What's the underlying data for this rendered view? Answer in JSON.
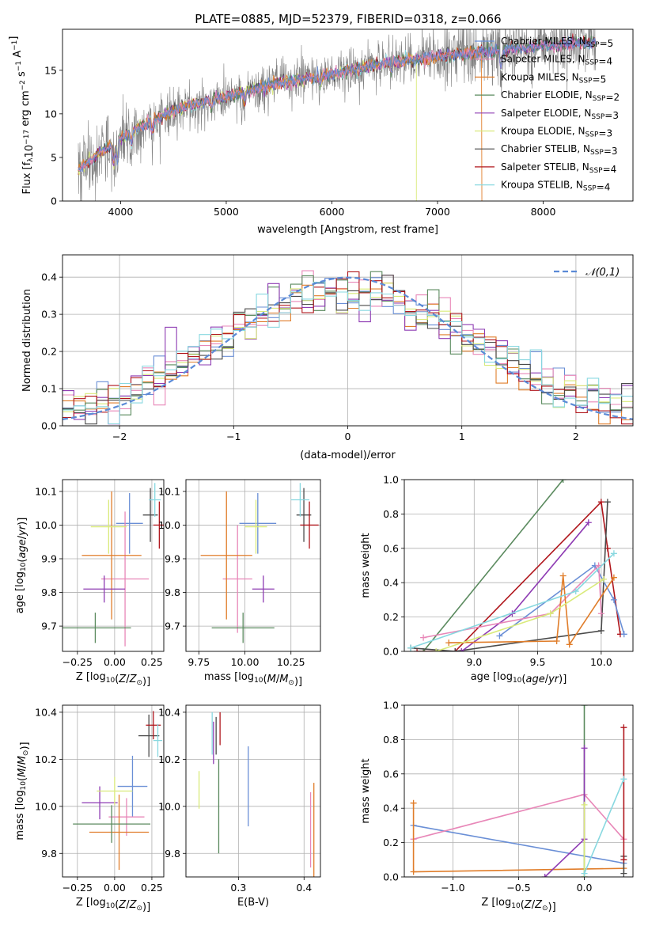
{
  "figure": {
    "title": "PLATE=0885, MJD=52379, FIBERID=0318, z=0.066"
  },
  "series": [
    {
      "key": "chab_miles",
      "name": "Chabrier MILES, N_SSP=5",
      "lib": "MILES",
      "imf": "Chabrier",
      "nssp": 5,
      "color": "#6a8fd6"
    },
    {
      "key": "salp_miles",
      "name": "Salpeter MILES, N_SSP=4",
      "lib": "MILES",
      "imf": "Salpeter",
      "nssp": 4,
      "color": "#e887b8"
    },
    {
      "key": "krou_miles",
      "name": "Kroupa MILES, N_SSP=5",
      "lib": "MILES",
      "imf": "Kroupa",
      "nssp": 5,
      "color": "#e07d2a"
    },
    {
      "key": "chab_elodie",
      "name": "Chabrier ELODIE, N_SSP=2",
      "lib": "ELODIE",
      "imf": "Chabrier",
      "nssp": 2,
      "color": "#5a8a5e"
    },
    {
      "key": "salp_elodie",
      "name": "Salpeter ELODIE, N_SSP=3",
      "lib": "ELODIE",
      "imf": "Salpeter",
      "nssp": 3,
      "color": "#8e3bb3"
    },
    {
      "key": "krou_elodie",
      "name": "Kroupa ELODIE, N_SSP=3",
      "lib": "ELODIE",
      "imf": "Kroupa",
      "nssp": 3,
      "color": "#d9ea7a"
    },
    {
      "key": "chab_stelib",
      "name": "Chabrier STELIB, N_SSP=3",
      "lib": "STELIB",
      "imf": "Chabrier",
      "nssp": 3,
      "color": "#4a4a4a"
    },
    {
      "key": "salp_stelib",
      "name": "Salpeter STELIB, N_SSP=4",
      "lib": "STELIB",
      "imf": "Salpeter",
      "nssp": 4,
      "color": "#b0161c"
    },
    {
      "key": "krou_stelib",
      "name": "Kroupa STELIB, N_SSP=4",
      "lib": "STELIB",
      "imf": "Kroupa",
      "nssp": 4,
      "color": "#88d8e0"
    }
  ],
  "chart_data": [
    {
      "id": "spectrum",
      "type": "line",
      "xlabel": "wavelength [Angstrom, rest frame]",
      "ylabel": "Flux [f_λ10^-17 erg cm^-2 s^-1 A^-1]",
      "xlim": [
        3450,
        8850
      ],
      "ylim": [
        0,
        19.7
      ],
      "xticks": [
        4000,
        5000,
        6000,
        7000,
        8000
      ],
      "yticks": [
        0,
        5,
        10,
        15
      ],
      "data_color": "#808080",
      "grid": false,
      "legend": "right",
      "continuum": {
        "x": [
          3600,
          3800,
          4000,
          4300,
          4600,
          5000,
          5500,
          6000,
          6500,
          7000,
          7500,
          8000,
          8500
        ],
        "y": [
          3.5,
          5.5,
          7.2,
          9.2,
          10.8,
          12.0,
          13.5,
          14.5,
          15.8,
          16.6,
          17.2,
          17.8,
          18.2
        ]
      },
      "model_cutoff": {
        "krou_elodie": 6800,
        "krou_miles": 7420
      }
    },
    {
      "id": "residual_hist",
      "type": "line",
      "xlabel": "(data-model)/error",
      "ylabel": "Normed distribution",
      "xlim": [
        -2.5,
        2.5
      ],
      "ylim": [
        0,
        0.46
      ],
      "xticks": [
        -2,
        -1,
        0,
        1,
        2
      ],
      "yticks": [
        0.0,
        0.1,
        0.2,
        0.3,
        0.4
      ],
      "grid": true,
      "legend": "top-right",
      "reference": {
        "name": "𝒩(0,1)",
        "color": "#5b8ad6",
        "style": "dashed"
      }
    },
    {
      "id": "age_vs_Z",
      "type": "scatter",
      "xlabel": "Z [log10(Z/Z☉)]",
      "ylabel": "age [log10(age/yr)]",
      "xlim": [
        -0.35,
        0.33
      ],
      "ylim": [
        9.625,
        10.135
      ],
      "xticks": [
        -0.25,
        0.0,
        0.25
      ],
      "yticks": [
        9.7,
        9.8,
        9.9,
        10.0,
        10.1
      ],
      "grid": true,
      "points": [
        {
          "s": "chab_miles",
          "x": 0.1,
          "y": 10.005,
          "xerr": 0.09,
          "yerr": 0.09
        },
        {
          "s": "salp_miles",
          "x": 0.07,
          "y": 9.84,
          "xerr": 0.16,
          "yerr": 0.2
        },
        {
          "s": "krou_miles",
          "x": -0.02,
          "y": 9.91,
          "xerr": 0.2,
          "yerr": 0.19
        },
        {
          "s": "chab_elodie",
          "x": -0.13,
          "y": 9.695,
          "xerr": 0.24,
          "yerr": 0.045
        },
        {
          "s": "salp_elodie",
          "x": -0.07,
          "y": 9.81,
          "xerr": 0.14,
          "yerr": 0.04
        },
        {
          "s": "krou_elodie",
          "x": -0.04,
          "y": 9.995,
          "xerr": 0.12,
          "yerr": 0.08
        },
        {
          "s": "chab_stelib",
          "x": 0.24,
          "y": 10.03,
          "xerr": 0.05,
          "yerr": 0.08
        },
        {
          "s": "salp_stelib",
          "x": 0.3,
          "y": 10.0,
          "xerr": 0.04,
          "yerr": 0.07
        },
        {
          "s": "krou_stelib",
          "x": 0.27,
          "y": 10.075,
          "xerr": 0.04,
          "yerr": 0.05
        }
      ]
    },
    {
      "id": "age_vs_mass",
      "type": "scatter",
      "xlabel": "mass [log10(M/M☉)]",
      "ylabel": "",
      "xlim": [
        9.68,
        10.41
      ],
      "ylim": [
        9.625,
        10.135
      ],
      "xticks": [
        9.75,
        10.0,
        10.25
      ],
      "yticks": [
        9.7,
        9.8,
        9.9,
        10.0,
        10.1
      ],
      "grid": true,
      "points": [
        {
          "s": "chab_miles",
          "x": 10.07,
          "y": 10.005,
          "xerr": 0.1,
          "yerr": 0.09
        },
        {
          "s": "salp_miles",
          "x": 9.96,
          "y": 9.84,
          "xerr": 0.08,
          "yerr": 0.16
        },
        {
          "s": "krou_miles",
          "x": 9.9,
          "y": 9.91,
          "xerr": 0.14,
          "yerr": 0.19
        },
        {
          "s": "chab_elodie",
          "x": 9.99,
          "y": 9.695,
          "xerr": 0.17,
          "yerr": 0.045
        },
        {
          "s": "salp_elodie",
          "x": 10.1,
          "y": 9.81,
          "xerr": 0.06,
          "yerr": 0.04
        },
        {
          "s": "krou_elodie",
          "x": 10.06,
          "y": 9.995,
          "xerr": 0.06,
          "yerr": 0.08
        },
        {
          "s": "chab_stelib",
          "x": 10.32,
          "y": 10.03,
          "xerr": 0.04,
          "yerr": 0.08
        },
        {
          "s": "salp_stelib",
          "x": 10.35,
          "y": 10.0,
          "xerr": 0.05,
          "yerr": 0.07
        },
        {
          "s": "krou_stelib",
          "x": 10.3,
          "y": 10.075,
          "xerr": 0.05,
          "yerr": 0.05
        }
      ]
    },
    {
      "id": "weight_vs_age",
      "type": "line",
      "xlabel": "age [log10(age/yr)]",
      "ylabel": "mass weight",
      "xlim": [
        8.45,
        10.25
      ],
      "ylim": [
        0,
        1
      ],
      "xticks": [
        9.0,
        9.5,
        10.0
      ],
      "yticks": [
        0.0,
        0.2,
        0.4,
        0.6,
        0.8,
        1.0
      ],
      "grid": true,
      "series": [
        {
          "s": "chab_elodie",
          "x": [
            8.6,
            9.7
          ],
          "y": [
            0.0,
            1.0
          ]
        },
        {
          "s": "salp_stelib",
          "x": [
            8.55,
            8.85,
            10.0,
            10.05,
            10.15
          ],
          "y": [
            0.0,
            0.0,
            0.87,
            0.6,
            0.1
          ]
        },
        {
          "s": "chab_stelib",
          "x": [
            8.5,
            8.85,
            10.0,
            10.05
          ],
          "y": [
            0.02,
            0.0,
            0.12,
            0.87
          ]
        },
        {
          "s": "salp_elodie",
          "x": [
            8.9,
            9.3,
            9.9
          ],
          "y": [
            0.0,
            0.22,
            0.75
          ]
        },
        {
          "s": "chab_miles",
          "x": [
            9.2,
            9.95,
            10.1,
            10.18
          ],
          "y": [
            0.09,
            0.5,
            0.3,
            0.1
          ]
        },
        {
          "s": "salp_miles",
          "x": [
            8.6,
            9.6,
            9.98,
            10.0
          ],
          "y": [
            0.08,
            0.22,
            0.5,
            0.22
          ]
        },
        {
          "s": "krou_miles",
          "x": [
            8.8,
            9.65,
            9.7,
            9.75,
            10.1
          ],
          "y": [
            0.05,
            0.06,
            0.44,
            0.04,
            0.43
          ]
        },
        {
          "s": "krou_elodie",
          "x": [
            8.7,
            9.6,
            10.02
          ],
          "y": [
            0.0,
            0.22,
            0.42
          ]
        },
        {
          "s": "krou_stelib",
          "x": [
            8.5,
            9.8,
            10.1
          ],
          "y": [
            0.02,
            0.35,
            0.57
          ]
        }
      ]
    },
    {
      "id": "mass_vs_Z",
      "type": "scatter",
      "xlabel": "Z [log10(Z/Z☉)]",
      "ylabel": "mass [log10(M/M☉)]",
      "xlim": [
        -0.35,
        0.33
      ],
      "ylim": [
        9.7,
        10.43
      ],
      "xticks": [
        -0.25,
        0.0,
        0.25
      ],
      "yticks": [
        9.8,
        10.0,
        10.2,
        10.4
      ],
      "grid": true,
      "points": [
        {
          "s": "chab_miles",
          "x": 0.12,
          "y": 10.085,
          "xerr": 0.1,
          "yerr": 0.13
        },
        {
          "s": "salp_miles",
          "x": 0.08,
          "y": 9.955,
          "xerr": 0.12,
          "yerr": 0.08
        },
        {
          "s": "krou_miles",
          "x": 0.03,
          "y": 9.89,
          "xerr": 0.2,
          "yerr": 0.16
        },
        {
          "s": "chab_elodie",
          "x": -0.02,
          "y": 9.925,
          "xerr": 0.26,
          "yerr": 0.08
        },
        {
          "s": "salp_elodie",
          "x": -0.1,
          "y": 10.015,
          "xerr": 0.12,
          "yerr": 0.07
        },
        {
          "s": "krou_elodie",
          "x": -0.0,
          "y": 10.065,
          "xerr": 0.12,
          "yerr": 0.06
        },
        {
          "s": "chab_stelib",
          "x": 0.23,
          "y": 10.3,
          "xerr": 0.07,
          "yerr": 0.09
        },
        {
          "s": "salp_stelib",
          "x": 0.26,
          "y": 10.345,
          "xerr": 0.05,
          "yerr": 0.06
        },
        {
          "s": "krou_stelib",
          "x": 0.29,
          "y": 10.28,
          "xerr": 0.03,
          "yerr": 0.07
        }
      ]
    },
    {
      "id": "mass_vs_ebv",
      "type": "scatter",
      "xlabel": "E(B-V)",
      "ylabel": "",
      "xlim": [
        0.22,
        0.425
      ],
      "ylim": [
        9.7,
        10.43
      ],
      "xticks": [
        0.3,
        0.4
      ],
      "yticks": [
        9.8,
        10.0,
        10.2,
        10.4
      ],
      "grid": true,
      "points": [
        {
          "s": "chab_miles",
          "x": 0.315,
          "y": 10.085,
          "yerr": 0.17
        },
        {
          "s": "salp_miles",
          "x": 0.41,
          "y": 9.9,
          "yerr": 0.16
        },
        {
          "s": "krou_miles",
          "x": 0.415,
          "y": 9.9,
          "yerr": 0.2
        },
        {
          "s": "chab_elodie",
          "x": 0.27,
          "y": 10.0,
          "yerr": 0.2
        },
        {
          "s": "salp_elodie",
          "x": 0.262,
          "y": 10.27,
          "yerr": 0.09
        },
        {
          "s": "krou_elodie",
          "x": 0.24,
          "y": 10.07,
          "yerr": 0.08
        },
        {
          "s": "chab_stelib",
          "x": 0.266,
          "y": 10.3,
          "yerr": 0.08
        },
        {
          "s": "salp_stelib",
          "x": 0.272,
          "y": 10.33,
          "yerr": 0.07
        },
        {
          "s": "krou_stelib",
          "x": 0.26,
          "y": 10.31,
          "yerr": 0.09
        }
      ]
    },
    {
      "id": "weight_vs_Z",
      "type": "line",
      "xlabel": "Z [log10(Z/Z☉)]",
      "ylabel": "mass weight",
      "xlim": [
        -1.37,
        0.37
      ],
      "ylim": [
        0,
        1
      ],
      "xticks": [
        -1.0,
        -0.5,
        0.0
      ],
      "yticks": [
        0.0,
        0.2,
        0.4,
        0.6,
        0.8,
        1.0
      ],
      "grid": true,
      "series": [
        {
          "s": "chab_miles",
          "x": [
            -1.3,
            0.3
          ],
          "y": [
            0.3,
            0.08
          ]
        },
        {
          "s": "salp_miles",
          "x": [
            -1.3,
            0.0,
            0.3
          ],
          "y": [
            0.22,
            0.48,
            0.22
          ]
        },
        {
          "s": "krou_miles",
          "x": [
            -1.3,
            -1.3,
            0.3
          ],
          "y": [
            0.43,
            0.03,
            0.05
          ]
        },
        {
          "s": "chab_elodie",
          "x": [
            0.0,
            0.0
          ],
          "y": [
            0.0,
            1.0
          ]
        },
        {
          "s": "salp_elodie",
          "x": [
            -0.3,
            0.0,
            0.0
          ],
          "y": [
            0.0,
            0.22,
            0.75
          ]
        },
        {
          "s": "krou_elodie",
          "x": [
            0.0,
            0.0
          ],
          "y": [
            0.0,
            0.42
          ]
        },
        {
          "s": "chab_stelib",
          "x": [
            0.3,
            0.3
          ],
          "y": [
            0.02,
            0.12
          ]
        },
        {
          "s": "salp_stelib",
          "x": [
            0.3,
            0.3
          ],
          "y": [
            0.1,
            0.87
          ]
        },
        {
          "s": "krou_stelib",
          "x": [
            0.0,
            0.3
          ],
          "y": [
            0.02,
            0.57
          ]
        }
      ]
    }
  ]
}
